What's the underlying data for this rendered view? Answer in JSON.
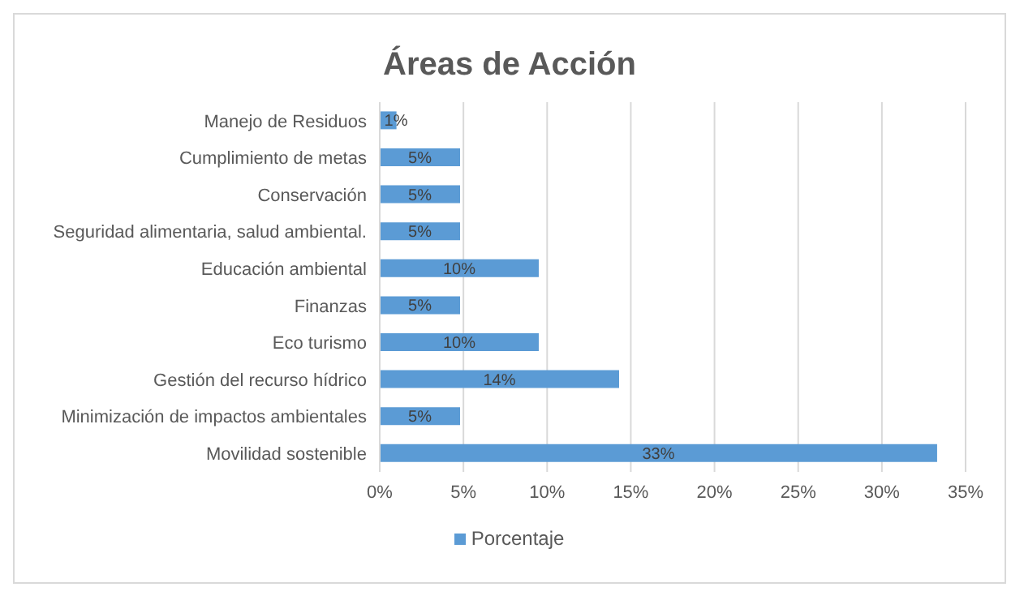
{
  "chart_data": {
    "type": "bar",
    "orientation": "horizontal",
    "title": "Áreas de Acción",
    "categories": [
      "Manejo de Residuos",
      "Cumplimiento de metas ",
      "Conservación",
      "Seguridad alimentaria, salud ambiental.",
      "Educación ambiental",
      "Finanzas",
      "Eco turismo",
      "Gestión del recurso hídrico",
      "Minimización de impactos ambientales",
      "Movilidad sostenible"
    ],
    "series": [
      {
        "name": "Porcentaje",
        "color": "#5b9bd5",
        "values": [
          1.0,
          4.8,
          4.8,
          4.8,
          9.5,
          4.8,
          9.5,
          14.3,
          4.8,
          33.3
        ],
        "value_labels": [
          "1%",
          "5%",
          "5%",
          "5%",
          "10%",
          "5%",
          "10%",
          "14%",
          "5%",
          "33%"
        ]
      }
    ],
    "xlim": [
      0,
      35
    ],
    "xticks": [
      {
        "value": 0,
        "label": "0%"
      },
      {
        "value": 5,
        "label": "5%"
      },
      {
        "value": 10,
        "label": "10%"
      },
      {
        "value": 15,
        "label": "15%"
      },
      {
        "value": 20,
        "label": "20%"
      },
      {
        "value": 25,
        "label": "25%"
      },
      {
        "value": 30,
        "label": "30%"
      },
      {
        "value": 35,
        "label": "35%"
      }
    ],
    "grid": "x",
    "legend": "bottom"
  }
}
